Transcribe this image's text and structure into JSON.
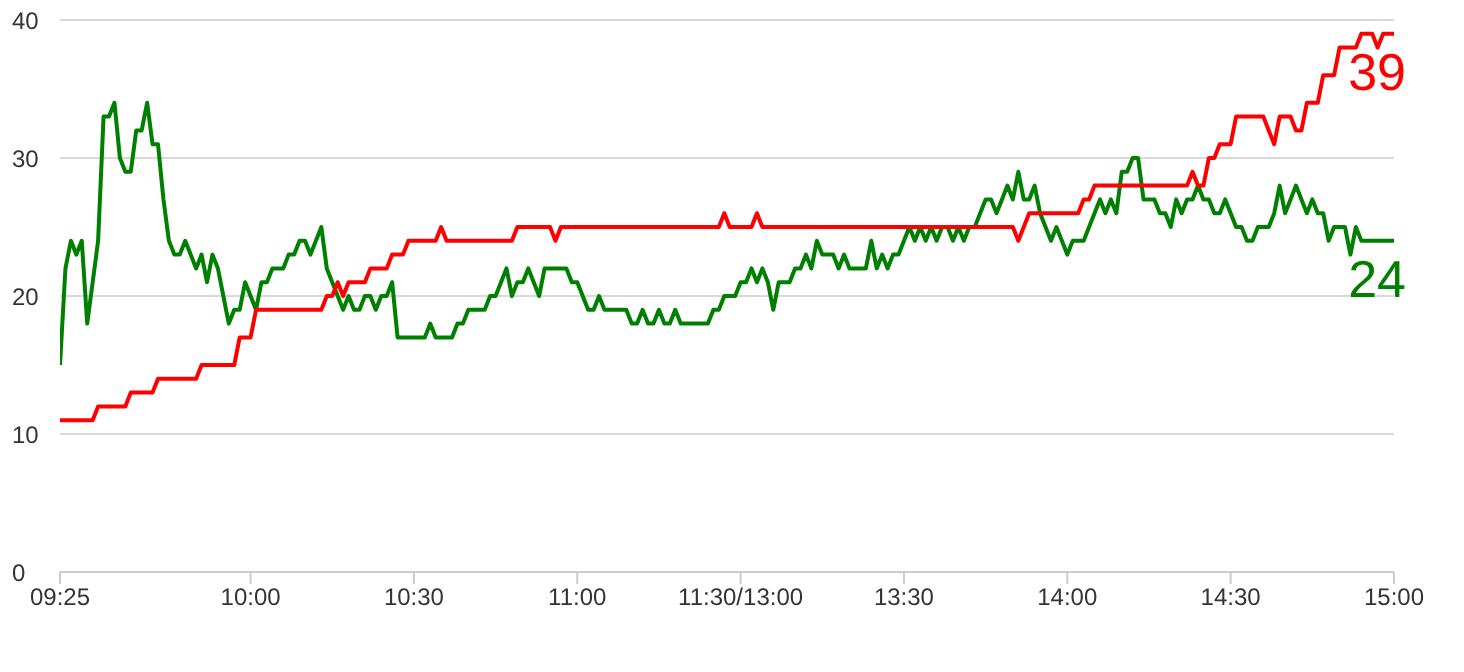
{
  "chart_data": {
    "type": "line",
    "categories": [
      "09:25",
      null,
      null,
      null,
      null,
      null,
      null,
      null,
      null,
      null,
      null,
      null,
      null,
      null,
      null,
      null,
      null,
      null,
      null,
      null,
      null,
      null,
      null,
      null,
      null,
      null,
      null,
      null,
      null,
      null,
      null,
      null,
      null,
      null,
      null,
      "10:00",
      null,
      null,
      null,
      null,
      null,
      null,
      null,
      null,
      null,
      null,
      null,
      null,
      null,
      null,
      null,
      null,
      null,
      null,
      null,
      null,
      null,
      null,
      null,
      null,
      null,
      null,
      null,
      null,
      null,
      "10:30",
      null,
      null,
      null,
      null,
      null,
      null,
      null,
      null,
      null,
      null,
      null,
      null,
      null,
      null,
      null,
      null,
      null,
      null,
      null,
      null,
      null,
      null,
      null,
      null,
      null,
      null,
      null,
      null,
      null,
      "11:00",
      null,
      null,
      null,
      null,
      null,
      null,
      null,
      null,
      null,
      null,
      null,
      null,
      null,
      null,
      null,
      null,
      null,
      null,
      null,
      null,
      null,
      null,
      null,
      null,
      null,
      null,
      null,
      null,
      null,
      "11:30/13:00",
      null,
      null,
      null,
      null,
      null,
      null,
      null,
      null,
      null,
      null,
      null,
      null,
      null,
      null,
      null,
      null,
      null,
      null,
      null,
      null,
      null,
      null,
      null,
      null,
      null,
      null,
      null,
      null,
      null,
      "13:30",
      null,
      null,
      null,
      null,
      null,
      null,
      null,
      null,
      null,
      null,
      null,
      null,
      null,
      null,
      null,
      null,
      null,
      null,
      null,
      null,
      null,
      null,
      null,
      null,
      null,
      null,
      null,
      null,
      null,
      "14:00",
      null,
      null,
      null,
      null,
      null,
      null,
      null,
      null,
      null,
      null,
      null,
      null,
      null,
      null,
      null,
      null,
      null,
      null,
      null,
      null,
      null,
      null,
      null,
      null,
      null,
      null,
      null,
      null,
      null,
      "14:30",
      null,
      null,
      null,
      null,
      null,
      null,
      null,
      null,
      null,
      null,
      null,
      null,
      null,
      null,
      null,
      null,
      null,
      null,
      null,
      null,
      null,
      null,
      null,
      null,
      null,
      null,
      null,
      null,
      null,
      "15:00"
    ],
    "ylim": [
      0,
      40
    ],
    "yticks": [
      0,
      10,
      20,
      30,
      40
    ],
    "grid": "y",
    "legend": false,
    "marker": "none",
    "line_style": "solid",
    "series": [
      {
        "color": "#008000",
        "values": [
          15,
          22,
          24,
          23,
          24,
          18,
          21,
          24,
          33,
          33,
          34,
          30,
          29,
          29,
          32,
          32,
          34,
          31,
          31,
          27,
          24,
          23,
          23,
          24,
          23,
          22,
          23,
          21,
          23,
          22,
          20,
          18,
          19,
          19,
          21,
          20,
          19,
          21,
          21,
          22,
          22,
          22,
          23,
          23,
          24,
          24,
          23,
          24,
          25,
          22,
          21,
          20,
          19,
          20,
          19,
          19,
          20,
          20,
          19,
          20,
          20,
          21,
          17,
          17,
          17,
          17,
          17,
          17,
          18,
          17,
          17,
          17,
          17,
          18,
          18,
          19,
          19,
          19,
          19,
          20,
          20,
          21,
          22,
          20,
          21,
          21,
          22,
          21,
          20,
          22,
          22,
          22,
          22,
          22,
          21,
          21,
          20,
          19,
          19,
          20,
          19,
          19,
          19,
          19,
          19,
          18,
          18,
          19,
          18,
          18,
          19,
          18,
          18,
          19,
          18,
          18,
          18,
          18,
          18,
          18,
          19,
          19,
          20,
          20,
          20,
          21,
          21,
          22,
          21,
          22,
          21,
          19,
          21,
          21,
          21,
          22,
          22,
          23,
          22,
          24,
          23,
          23,
          23,
          22,
          23,
          22,
          22,
          22,
          22,
          24,
          22,
          23,
          22,
          23,
          23,
          24,
          25,
          24,
          25,
          24,
          25,
          24,
          25,
          25,
          24,
          25,
          24,
          25,
          25,
          26,
          27,
          27,
          26,
          27,
          28,
          27,
          29,
          27,
          27,
          28,
          26,
          25,
          24,
          25,
          24,
          23,
          24,
          24,
          24,
          25,
          26,
          27,
          26,
          27,
          26,
          29,
          29,
          30,
          30,
          27,
          27,
          27,
          26,
          26,
          25,
          27,
          26,
          27,
          27,
          28,
          27,
          27,
          26,
          26,
          27,
          26,
          25,
          25,
          24,
          24,
          25,
          25,
          25,
          26,
          28,
          26,
          27,
          28,
          27,
          26,
          27,
          26,
          26,
          24,
          25,
          25,
          25,
          23,
          25,
          24,
          24,
          24,
          24,
          24,
          24,
          24
        ]
      },
      {
        "color": "#ff0000",
        "values": [
          11,
          11,
          11,
          11,
          11,
          11,
          11,
          12,
          12,
          12,
          12,
          12,
          12,
          13,
          13,
          13,
          13,
          13,
          14,
          14,
          14,
          14,
          14,
          14,
          14,
          14,
          15,
          15,
          15,
          15,
          15,
          15,
          15,
          17,
          17,
          17,
          19,
          19,
          19,
          19,
          19,
          19,
          19,
          19,
          19,
          19,
          19,
          19,
          19,
          20,
          20,
          21,
          20,
          21,
          21,
          21,
          21,
          22,
          22,
          22,
          22,
          23,
          23,
          23,
          24,
          24,
          24,
          24,
          24,
          24,
          25,
          24,
          24,
          24,
          24,
          24,
          24,
          24,
          24,
          24,
          24,
          24,
          24,
          24,
          25,
          25,
          25,
          25,
          25,
          25,
          25,
          24,
          25,
          25,
          25,
          25,
          25,
          25,
          25,
          25,
          25,
          25,
          25,
          25,
          25,
          25,
          25,
          25,
          25,
          25,
          25,
          25,
          25,
          25,
          25,
          25,
          25,
          25,
          25,
          25,
          25,
          25,
          26,
          25,
          25,
          25,
          25,
          25,
          26,
          25,
          25,
          25,
          25,
          25,
          25,
          25,
          25,
          25,
          25,
          25,
          25,
          25,
          25,
          25,
          25,
          25,
          25,
          25,
          25,
          25,
          25,
          25,
          25,
          25,
          25,
          25,
          25,
          25,
          25,
          25,
          25,
          25,
          25,
          25,
          25,
          25,
          25,
          25,
          25,
          25,
          25,
          25,
          25,
          25,
          25,
          25,
          24,
          25,
          26,
          26,
          26,
          26,
          26,
          26,
          26,
          26,
          26,
          26,
          27,
          27,
          28,
          28,
          28,
          28,
          28,
          28,
          28,
          28,
          28,
          28,
          28,
          28,
          28,
          28,
          28,
          28,
          28,
          28,
          29,
          28,
          28,
          30,
          30,
          31,
          31,
          31,
          33,
          33,
          33,
          33,
          33,
          33,
          32,
          31,
          33,
          33,
          33,
          32,
          32,
          34,
          34,
          34,
          36,
          36,
          36,
          38,
          38,
          38,
          38,
          39,
          39,
          39,
          38,
          39,
          39,
          39
        ]
      }
    ],
    "annotations": [
      {
        "text": "39",
        "x": "15:00",
        "y": 39
      },
      {
        "text": "24",
        "x": "15:00",
        "y": 24
      }
    ]
  }
}
